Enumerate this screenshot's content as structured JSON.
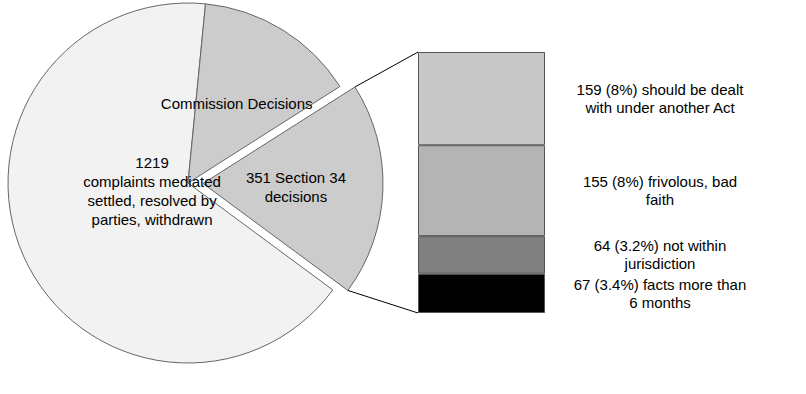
{
  "chart_data": [
    {
      "type": "pie",
      "values": [
        1219,
        265,
        351
      ],
      "value_labels": [
        "1219\ncomplaints mediated\nsettled, resolved by\nparties, withdrawn",
        "Commission Decisions",
        "351 Section 34\ndecisions"
      ],
      "colors": [
        "#f2f2f2",
        "#cccccc",
        "#cccccc"
      ],
      "data_labels": true
    },
    {
      "type": "bar",
      "stacked": true,
      "values": [
        159,
        155,
        64,
        67
      ],
      "value_labels": [
        "159 (8%) should be dealt\nwith under another Act",
        "155 (8%) frivolous, bad\nfaith",
        "64 (3.2%) not within\njurisdiction",
        "67 (3.4%) facts more than\n6 months"
      ],
      "colors": [
        "#c8c8c8",
        "#b4b4b4",
        "#808080",
        "#000000"
      ],
      "ylim": [
        0,
        445
      ],
      "data_labels": true,
      "tick_labels": false
    }
  ]
}
